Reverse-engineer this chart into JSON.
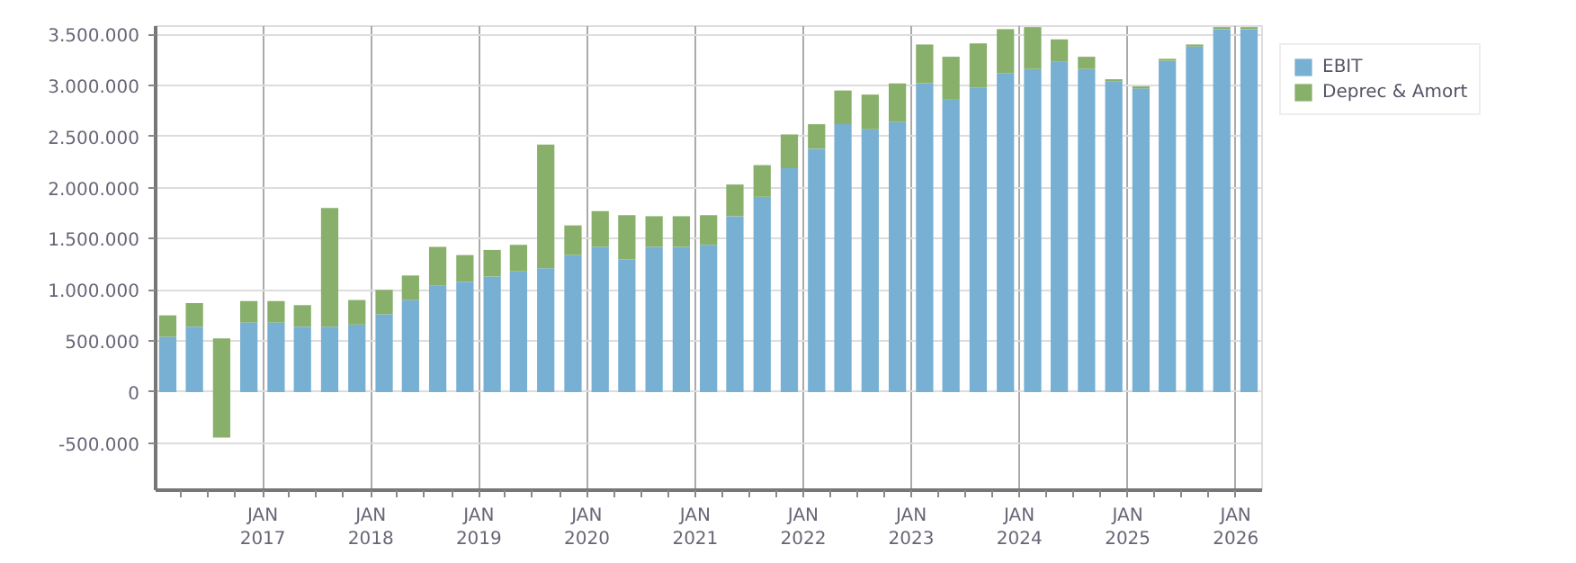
{
  "chart_data": {
    "type": "bar",
    "stacked": true,
    "x": [
      "2016-02-15",
      "2016-05-15",
      "2016-08-15",
      "2016-11-15",
      "2017-02-15",
      "2017-05-15",
      "2017-08-15",
      "2017-11-15",
      "2018-02-15",
      "2018-05-15",
      "2018-08-15",
      "2018-11-15",
      "2019-02-15",
      "2019-05-15",
      "2019-08-15",
      "2019-11-15",
      "2020-02-15",
      "2020-05-15",
      "2020-08-15",
      "2020-11-15",
      "2021-02-15",
      "2021-05-15",
      "2021-08-15",
      "2021-11-15",
      "2022-02-15",
      "2022-05-15",
      "2022-08-15",
      "2022-11-15",
      "2023-02-15",
      "2023-05-15",
      "2023-08-15",
      "2023-11-15",
      "2024-02-15",
      "2024-05-15",
      "2024-08-15",
      "2024-11-15",
      "2025-02-15",
      "2025-05-15",
      "2025-08-15",
      "2025-11-15",
      "2026-02-15"
    ],
    "series": [
      {
        "name": "EBIT",
        "color": "#77b0d3",
        "values": [
          540000,
          640000,
          null,
          680000,
          680000,
          640000,
          640000,
          660000,
          760000,
          900000,
          1040000,
          1080000,
          1130000,
          1180000,
          1210000,
          1340000,
          1420000,
          1300000,
          1420000,
          1420000,
          1440000,
          1720000,
          1910000,
          2190000,
          2380000,
          2620000,
          2570000,
          2640000,
          3020000,
          2860000,
          2980000,
          3120000,
          3160000,
          3230000,
          3160000,
          3040000,
          2970000,
          3240000,
          3380000,
          3550000,
          3550000
        ]
      },
      {
        "name": "Deprec & Amort",
        "color": "#88b06a",
        "values": [
          210000,
          230000,
          970000,
          210000,
          210000,
          210000,
          1160000,
          240000,
          240000,
          240000,
          380000,
          260000,
          260000,
          260000,
          1210000,
          290000,
          350000,
          430000,
          300000,
          300000,
          290000,
          310000,
          310000,
          330000,
          240000,
          330000,
          340000,
          380000,
          380000,
          420000,
          430000,
          430000,
          410000,
          220000,
          120000,
          20000,
          20000,
          20000,
          20000,
          20000,
          20000
        ],
        "base": [
          null,
          null,
          -445000,
          null,
          null,
          null,
          null,
          null,
          null,
          null,
          null,
          null,
          null,
          null,
          null,
          null,
          null,
          null,
          null,
          null,
          null,
          null,
          null,
          null,
          null,
          null,
          null,
          null,
          null,
          null,
          null,
          null,
          null,
          null,
          null,
          null,
          null,
          null,
          null,
          null,
          null
        ]
      }
    ],
    "xlim": [
      "2016-01-05",
      "2026-03-31"
    ],
    "xticks": [
      {
        "value": "2016-04-01",
        "label": null
      },
      {
        "value": "2016-07-01",
        "label": null
      },
      {
        "value": "2016-10-01",
        "label": null
      },
      {
        "value": "2017-01-01",
        "label": "JAN\n2017"
      },
      {
        "value": "2017-04-01",
        "label": null
      },
      {
        "value": "2017-07-01",
        "label": null
      },
      {
        "value": "2017-10-01",
        "label": null
      },
      {
        "value": "2018-01-01",
        "label": "JAN\n2018"
      },
      {
        "value": "2018-04-01",
        "label": null
      },
      {
        "value": "2018-07-01",
        "label": null
      },
      {
        "value": "2018-10-01",
        "label": null
      },
      {
        "value": "2019-01-01",
        "label": "JAN\n2019"
      },
      {
        "value": "2019-04-01",
        "label": null
      },
      {
        "value": "2019-07-01",
        "label": null
      },
      {
        "value": "2019-10-01",
        "label": null
      },
      {
        "value": "2020-01-01",
        "label": "JAN\n2020"
      },
      {
        "value": "2020-04-01",
        "label": null
      },
      {
        "value": "2020-07-01",
        "label": null
      },
      {
        "value": "2020-10-01",
        "label": null
      },
      {
        "value": "2021-01-01",
        "label": "JAN\n2021"
      },
      {
        "value": "2021-04-01",
        "label": null
      },
      {
        "value": "2021-07-01",
        "label": null
      },
      {
        "value": "2021-10-01",
        "label": null
      },
      {
        "value": "2022-01-01",
        "label": "JAN\n2022"
      },
      {
        "value": "2022-04-01",
        "label": null
      },
      {
        "value": "2022-07-01",
        "label": null
      },
      {
        "value": "2022-10-01",
        "label": null
      },
      {
        "value": "2023-01-01",
        "label": "JAN\n2023"
      },
      {
        "value": "2023-04-01",
        "label": null
      },
      {
        "value": "2023-07-01",
        "label": null
      },
      {
        "value": "2023-10-01",
        "label": null
      },
      {
        "value": "2024-01-01",
        "label": "JAN\n2024"
      },
      {
        "value": "2024-04-01",
        "label": null
      },
      {
        "value": "2024-07-01",
        "label": null
      },
      {
        "value": "2024-10-01",
        "label": null
      },
      {
        "value": "2025-01-01",
        "label": "JAN\n2025"
      },
      {
        "value": "2025-04-01",
        "label": null
      },
      {
        "value": "2025-07-01",
        "label": null
      },
      {
        "value": "2025-10-01",
        "label": null
      },
      {
        "value": "2026-01-01",
        "label": "JAN\n2026"
      }
    ],
    "ylim": [
      -960000,
      3580000
    ],
    "yticks": [
      {
        "value": -500000,
        "label": "-500.000"
      },
      {
        "value": 0,
        "label": "0"
      },
      {
        "value": 500000,
        "label": "500.000"
      },
      {
        "value": 1000000,
        "label": "1.000.000"
      },
      {
        "value": 1500000,
        "label": "1.500.000"
      },
      {
        "value": 2000000,
        "label": "2.000.000"
      },
      {
        "value": 2500000,
        "label": "2.500.000"
      },
      {
        "value": 3000000,
        "label": "3.000.000"
      },
      {
        "value": 3500000,
        "label": "3.500.000"
      }
    ],
    "grid": true,
    "legend": "right"
  }
}
